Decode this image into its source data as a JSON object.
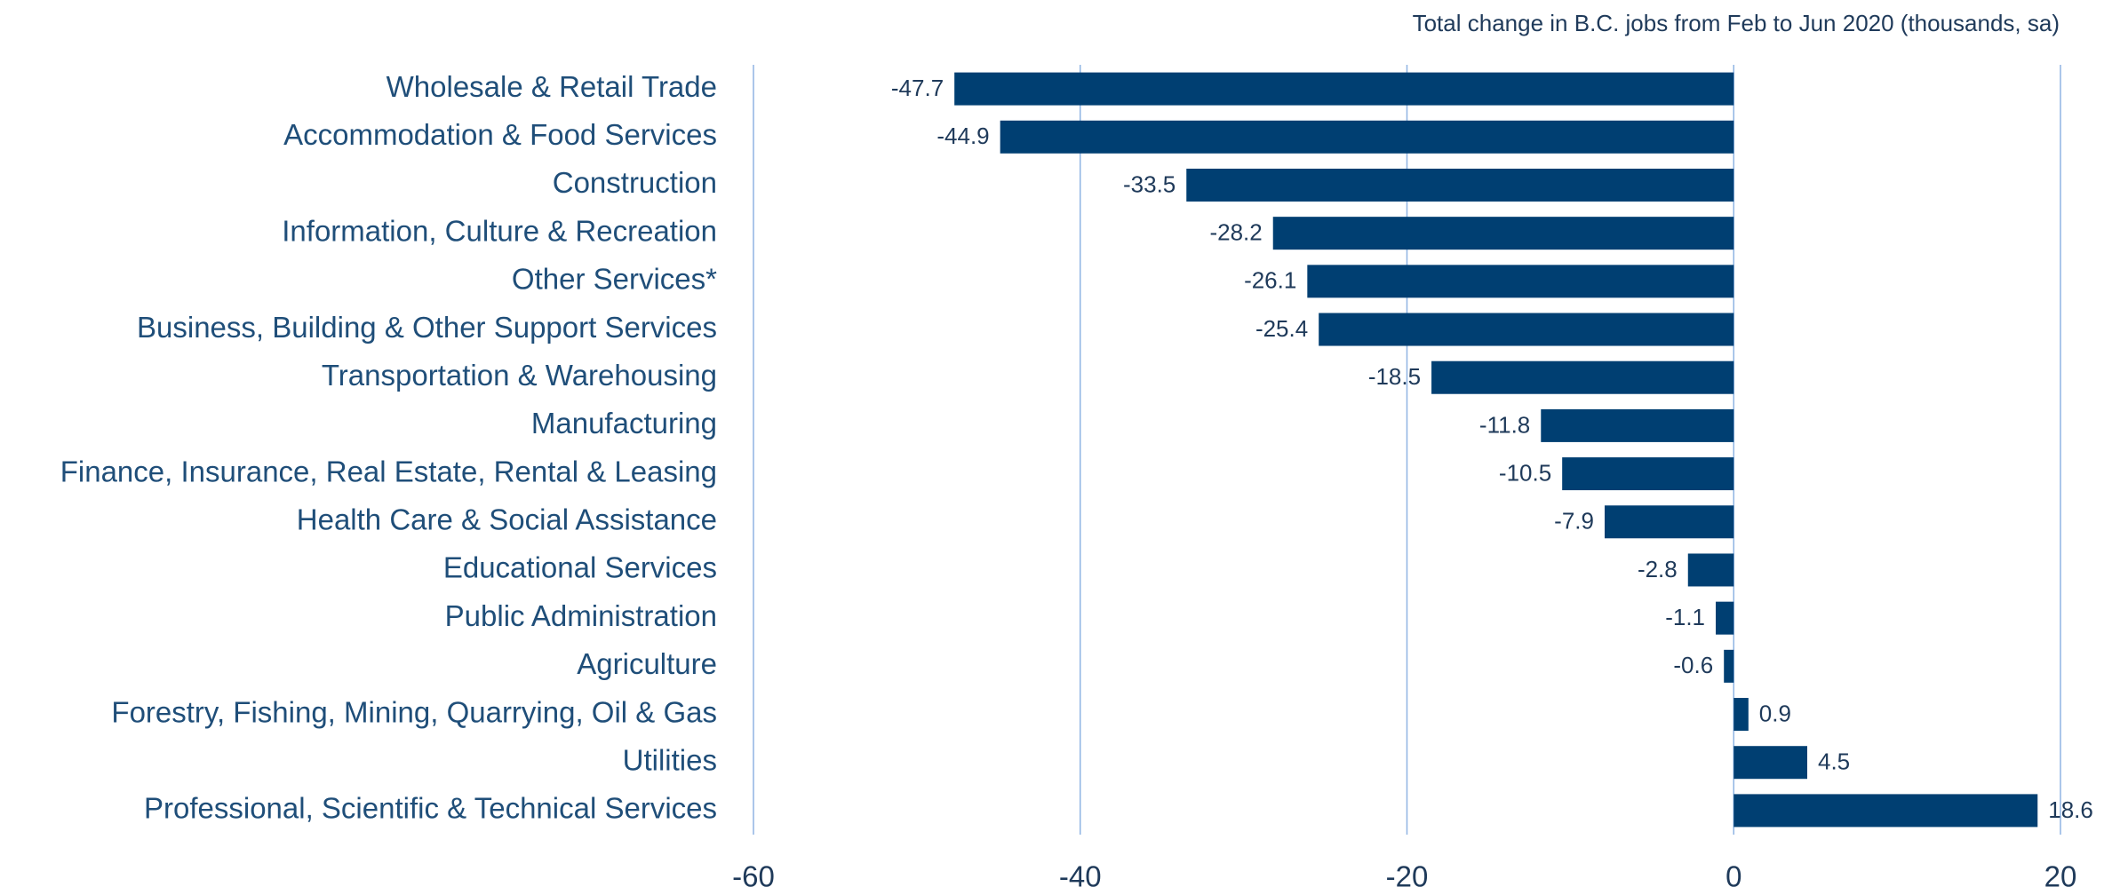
{
  "chart_data": {
    "type": "barh",
    "title": "Total change in B.C. jobs from Feb to Jun 2020 (thousands, sa)",
    "categories": [
      "Wholesale & Retail Trade",
      "Accommodation & Food Services",
      "Construction",
      "Information, Culture & Recreation",
      "Other Services*",
      "Business, Building & Other Support Services",
      "Transportation & Warehousing",
      "Manufacturing",
      "Finance, Insurance, Real Estate, Rental & Leasing",
      "Health Care & Social Assistance",
      "Educational Services",
      "Public Administration",
      "Agriculture",
      "Forestry, Fishing, Mining, Quarrying, Oil & Gas",
      "Utilities",
      "Professional, Scientific & Technical Services"
    ],
    "values": [
      -47.7,
      -44.9,
      -33.5,
      -28.2,
      -26.1,
      -25.4,
      -18.5,
      -11.8,
      -10.5,
      -7.9,
      -2.8,
      -1.1,
      -0.6,
      0.9,
      4.5,
      18.6
    ],
    "color": "#003f72",
    "xlim": [
      -60,
      20
    ],
    "xticks": [
      -60,
      -40,
      -20,
      0,
      20
    ],
    "grid": true
  }
}
